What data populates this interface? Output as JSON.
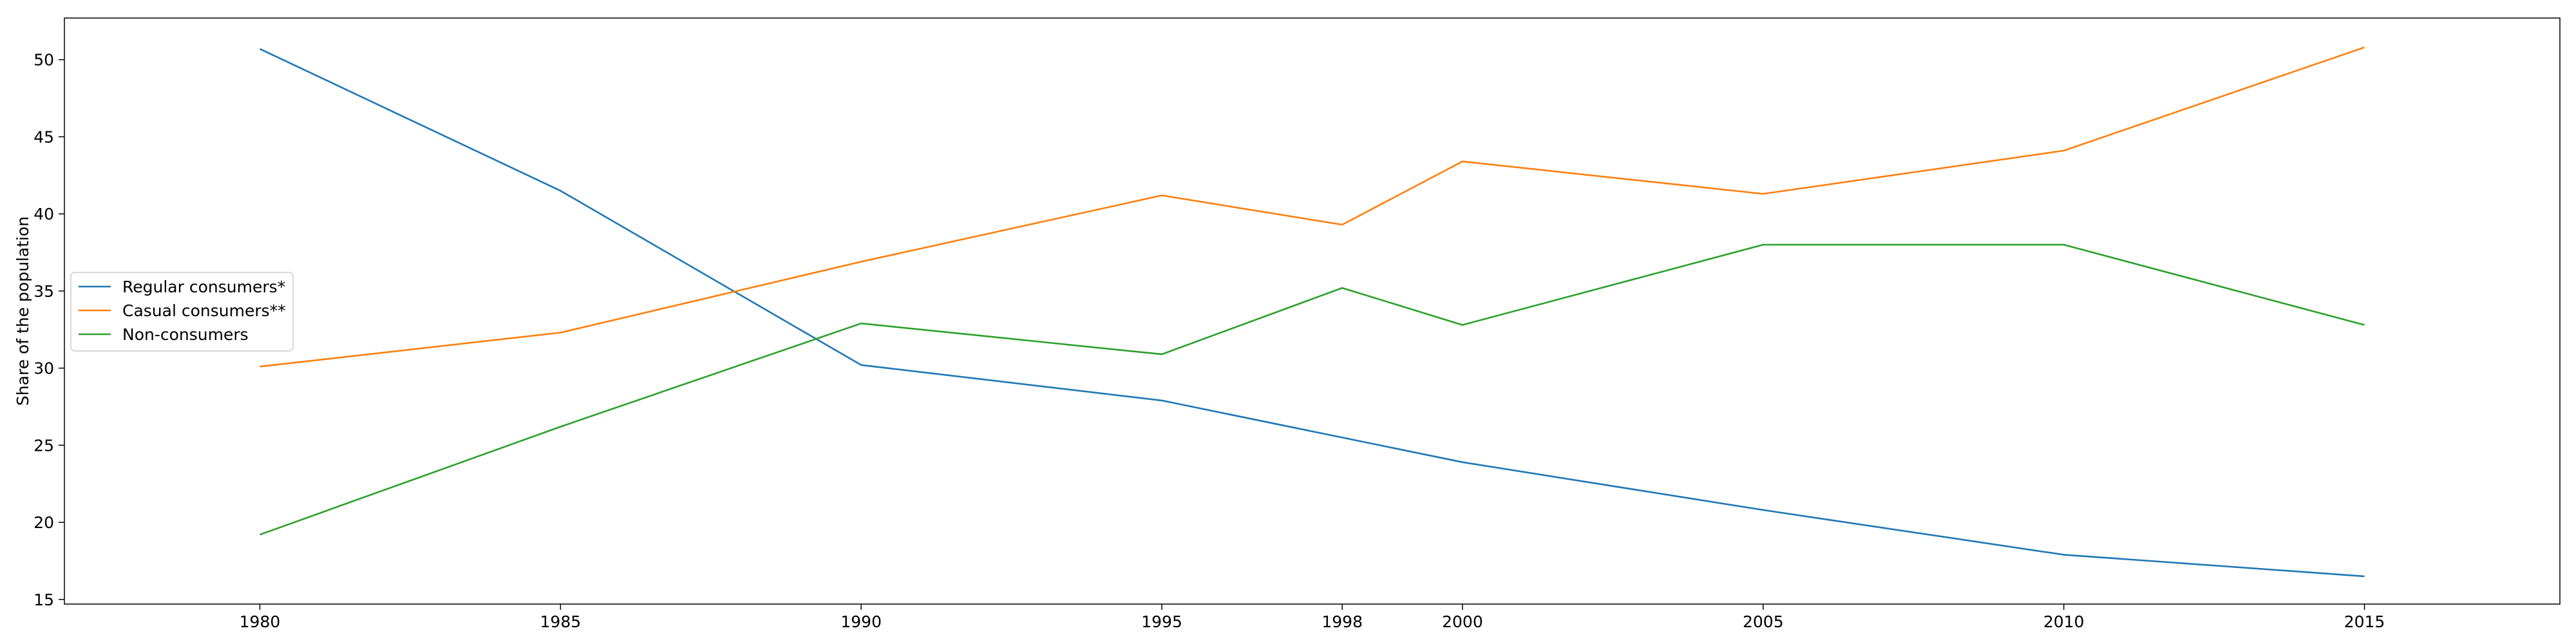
{
  "chart_data": {
    "type": "line",
    "title": "",
    "xlabel": "",
    "ylabel": "Share of the population",
    "x": [
      1980,
      1985,
      1990,
      1995,
      1998,
      2000,
      2005,
      2010,
      2015
    ],
    "x_tick_labels": [
      "1980",
      "1985",
      "1990",
      "1995",
      "1998",
      "2000",
      "2005",
      "2010",
      "2015"
    ],
    "xlim": [
      1976.75,
      2018.25
    ],
    "ylim": [
      14.7,
      52.7
    ],
    "y_ticks": [
      15,
      20,
      25,
      30,
      35,
      40,
      45,
      50
    ],
    "y_tick_labels": [
      "15",
      "20",
      "25",
      "30",
      "35",
      "40",
      "45",
      "50"
    ],
    "grid": false,
    "legend_position": "center-left",
    "series": [
      {
        "name": "Regular consumers*",
        "color": "#1f77b4",
        "values": [
          50.7,
          41.5,
          30.2,
          27.9,
          25.5,
          23.9,
          20.8,
          17.9,
          16.5
        ]
      },
      {
        "name": "Casual consumers**",
        "color": "#ff7f0e",
        "values": [
          30.1,
          32.3,
          36.9,
          41.2,
          39.3,
          43.4,
          41.3,
          44.1,
          50.8
        ]
      },
      {
        "name": "Non-consumers",
        "color": "#2ca02c",
        "values": [
          19.2,
          26.2,
          32.9,
          30.9,
          35.2,
          32.8,
          38.0,
          38.0,
          32.8
        ]
      }
    ]
  }
}
